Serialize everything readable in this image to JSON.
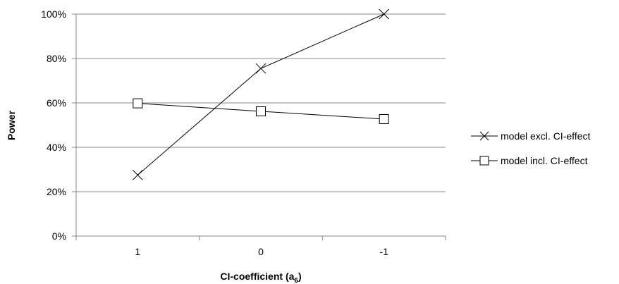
{
  "chart_data": {
    "type": "line",
    "categories": [
      "1",
      "0",
      "-1"
    ],
    "ylabel": "Power",
    "xlabel": "CI-coefficient (a",
    "xlabel_sub": "6",
    "xlabel_end": ")",
    "ylim": [
      0,
      1
    ],
    "yticks": [
      "0%",
      "20%",
      "40%",
      "60%",
      "80%",
      "100%"
    ],
    "grid": true,
    "legend_position": "right",
    "series": [
      {
        "name": "model excl. CI-effect",
        "marker": "x",
        "values": [
          0.275,
          0.755,
          1.0
        ]
      },
      {
        "name": "model incl. CI-effect",
        "marker": "square",
        "values": [
          0.598,
          0.562,
          0.527
        ]
      }
    ]
  }
}
